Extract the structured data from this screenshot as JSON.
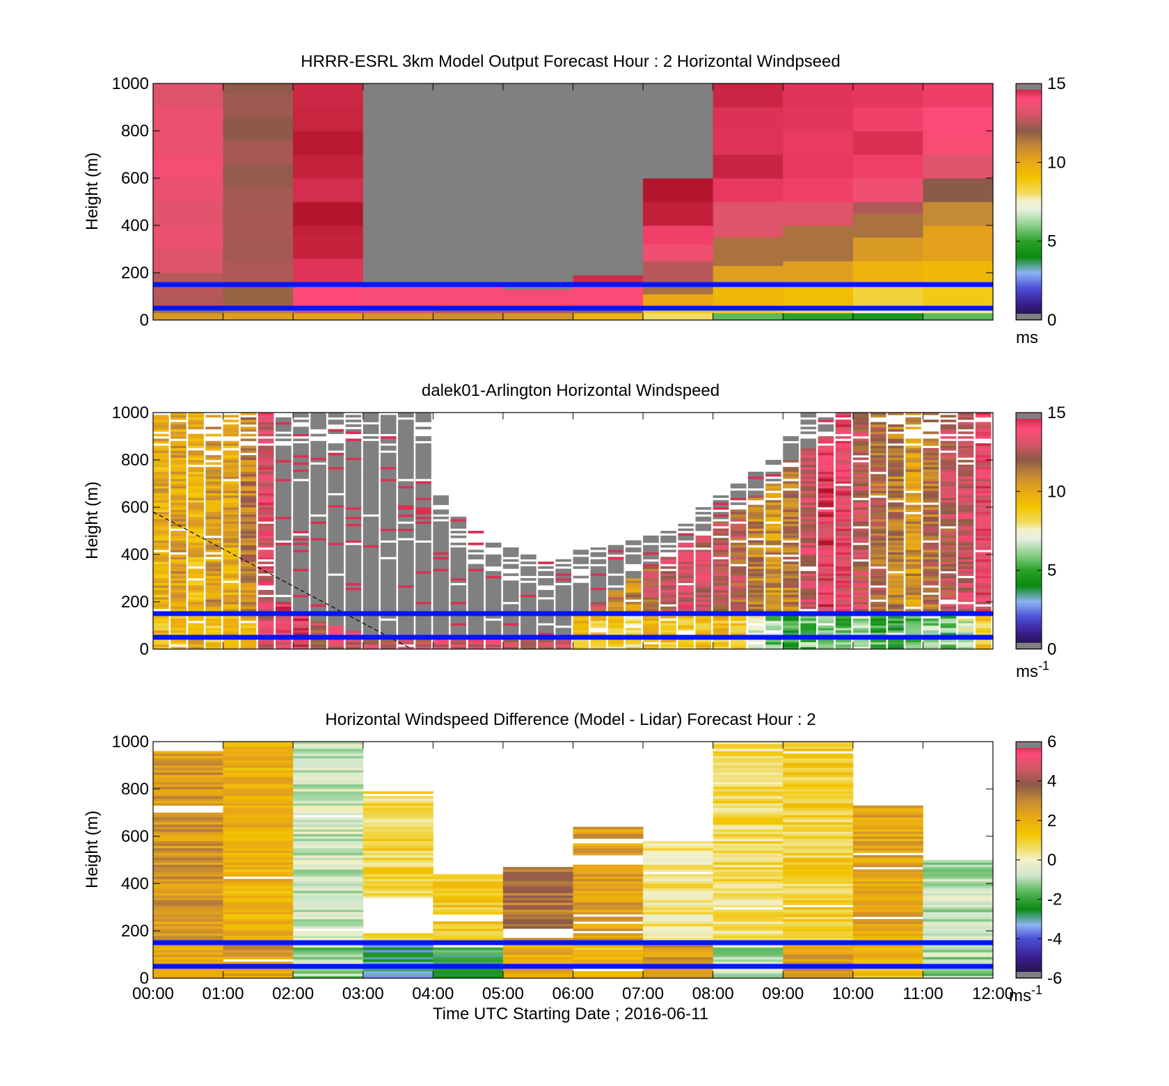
{
  "colors": {
    "grey": "#808080",
    "blue_line": "#0015ff",
    "windspeed_scale": [
      [
        0,
        "#1a1033"
      ],
      [
        1,
        "#3a1d8a"
      ],
      [
        2,
        "#4b4ed8"
      ],
      [
        3,
        "#8cb4f2"
      ],
      [
        4,
        "#0a8a10"
      ],
      [
        5,
        "#2aa22a"
      ],
      [
        6,
        "#8ccf8c"
      ],
      [
        7,
        "#e8f0e0"
      ],
      [
        7.6,
        "#f4f0c8"
      ],
      [
        8,
        "#f1dc63"
      ],
      [
        9,
        "#f2c400"
      ],
      [
        10,
        "#eaa716"
      ],
      [
        11,
        "#c58a34"
      ],
      [
        12,
        "#8c5a48"
      ],
      [
        13,
        "#d65668"
      ],
      [
        14,
        "#ff4a78"
      ],
      [
        15,
        "#b3162c"
      ]
    ],
    "difference_scale": [
      [
        -6,
        "#1a1033"
      ],
      [
        -5,
        "#3a1d8a"
      ],
      [
        -4,
        "#4b4ed8"
      ],
      [
        -3.3,
        "#8cb4f2"
      ],
      [
        -2.5,
        "#0a8a10"
      ],
      [
        -1.6,
        "#5bb85b"
      ],
      [
        -0.8,
        "#cfe6cf"
      ],
      [
        0,
        "#f4f0c8"
      ],
      [
        0.6,
        "#f1dc63"
      ],
      [
        1.3,
        "#f2c400"
      ],
      [
        2.2,
        "#eaa716"
      ],
      [
        3,
        "#c58a34"
      ],
      [
        3.8,
        "#8c5a48"
      ],
      [
        4.7,
        "#d65668"
      ],
      [
        5.4,
        "#ff4a78"
      ],
      [
        6,
        "#b3162c"
      ]
    ]
  },
  "x_ticks": [
    "00:00",
    "01:00",
    "02:00",
    "03:00",
    "04:00",
    "05:00",
    "06:00",
    "07:00",
    "08:00",
    "09:00",
    "10:00",
    "11:00",
    "12:00"
  ],
  "xlabel": "Time UTC  Starting Date ; 2016-06-11",
  "y_ticks": [
    "0",
    "200",
    "400",
    "600",
    "800",
    "1000"
  ],
  "ylabel": "Height (m)",
  "reference_heights_m": [
    150,
    50
  ],
  "chart_data": [
    {
      "type": "heatmap",
      "title": "HRRR-ESRL 3km Model Output   Forecast Hour : 2 Horizontal Windpseed",
      "xlabel": "",
      "ylabel": "Height (m)",
      "x_hours": [
        0,
        12
      ],
      "ylim": [
        0,
        1000
      ],
      "clim": [
        0,
        15
      ],
      "colorbar_ticks": [
        "0",
        "5",
        "10",
        "15"
      ],
      "colorbar_unit": "ms",
      "colorbar_unit_sup": "",
      "columns_description_hours": [
        0,
        1,
        2,
        3,
        4,
        5,
        6,
        7,
        8,
        9,
        10,
        11
      ],
      "columns": [
        {
          "levels": [
            [
              0,
              30,
              10.5
            ],
            [
              30,
              60,
              11.5
            ],
            [
              60,
              100,
              12.5
            ],
            [
              100,
              200,
              12.6
            ],
            [
              200,
              300,
              13.2
            ],
            [
              300,
              1000,
              13.4
            ]
          ]
        },
        {
          "levels": [
            [
              0,
              30,
              10.3
            ],
            [
              30,
              60,
              11.2
            ],
            [
              60,
              160,
              11.8
            ],
            [
              160,
              1000,
              12.2
            ]
          ]
        },
        {
          "levels": [
            [
              0,
              30,
              10.2
            ],
            [
              30,
              60,
              12.8
            ],
            [
              60,
              160,
              14.0
            ],
            [
              160,
              400,
              14.6
            ],
            [
              400,
              1000,
              14.8
            ]
          ]
        },
        {
          "levels": [
            [
              0,
              30,
              10.6
            ],
            [
              30,
              60,
              13.0
            ],
            [
              60,
              160,
              13.8
            ],
            [
              160,
              1000,
              -1
            ]
          ]
        },
        {
          "levels": [
            [
              0,
              30,
              10.8
            ],
            [
              30,
              60,
              12.6
            ],
            [
              60,
              150,
              13.8
            ],
            [
              150,
              1000,
              -1
            ]
          ]
        },
        {
          "levels": [
            [
              0,
              30,
              10.6
            ],
            [
              30,
              60,
              12.6
            ],
            [
              60,
              130,
              13.8
            ],
            [
              130,
              1000,
              -1
            ]
          ]
        },
        {
          "levels": [
            [
              0,
              30,
              9.6
            ],
            [
              30,
              60,
              11.8
            ],
            [
              60,
              150,
              13.9
            ],
            [
              150,
              190,
              14.6
            ],
            [
              190,
              1000,
              -1
            ]
          ]
        },
        {
          "levels": [
            [
              0,
              30,
              8.0
            ],
            [
              30,
              60,
              8.8
            ],
            [
              60,
              110,
              10.0
            ],
            [
              110,
              160,
              11.5
            ],
            [
              160,
              250,
              12.6
            ],
            [
              250,
              320,
              13.6
            ],
            [
              320,
              400,
              14.2
            ],
            [
              400,
              600,
              14.9
            ],
            [
              600,
              1000,
              -1
            ]
          ]
        },
        {
          "levels": [
            [
              0,
              30,
              5.5
            ],
            [
              30,
              60,
              8.8
            ],
            [
              60,
              150,
              9.4
            ],
            [
              150,
              230,
              10.3
            ],
            [
              230,
              350,
              11.5
            ],
            [
              350,
              500,
              13.2
            ],
            [
              500,
              600,
              14.3
            ],
            [
              600,
              1000,
              14.5
            ]
          ]
        },
        {
          "levels": [
            [
              0,
              30,
              5.0
            ],
            [
              30,
              60,
              8.2
            ],
            [
              60,
              150,
              9.2
            ],
            [
              150,
              250,
              10.3
            ],
            [
              250,
              400,
              11.5
            ],
            [
              400,
              500,
              13.2
            ],
            [
              500,
              600,
              14.2
            ],
            [
              600,
              1000,
              14.5
            ]
          ]
        },
        {
          "levels": [
            [
              0,
              30,
              4.5
            ],
            [
              30,
              60,
              7.2
            ],
            [
              60,
              150,
              8.4
            ],
            [
              150,
              250,
              9.6
            ],
            [
              250,
              350,
              10.5
            ],
            [
              350,
              450,
              11.5
            ],
            [
              450,
              500,
              12.5
            ],
            [
              500,
              600,
              13.6
            ],
            [
              600,
              1000,
              14.2
            ]
          ]
        },
        {
          "levels": [
            [
              0,
              30,
              5.5
            ],
            [
              30,
              60,
              7.8
            ],
            [
              60,
              150,
              8.8
            ],
            [
              150,
              250,
              9.4
            ],
            [
              250,
              400,
              10.2
            ],
            [
              400,
              500,
              11.0
            ],
            [
              500,
              600,
              12.0
            ],
            [
              600,
              700,
              13.2
            ],
            [
              700,
              1000,
              14.0
            ]
          ]
        }
      ]
    },
    {
      "type": "heatmap",
      "title": "dalek01-Arlington  Horizontal Windspeed",
      "xlabel": "",
      "ylabel": "Height (m)",
      "x_hours": [
        0,
        12
      ],
      "ylim": [
        0,
        1000
      ],
      "clim": [
        0,
        15
      ],
      "colorbar_ticks": [
        "0",
        "5",
        "10",
        "15"
      ],
      "colorbar_unit": "ms",
      "colorbar_unit_sup": "-1",
      "dashed_line": {
        "from": [
          0,
          580
        ],
        "to": [
          3.7,
          0
        ]
      },
      "column_bins": 48,
      "column_tops_m": [
        1000,
        1000,
        1000,
        1000,
        1000,
        1000,
        1000,
        1000,
        1000,
        1000,
        1000,
        1000,
        1000,
        1000,
        1000,
        1000,
        650,
        560,
        500,
        450,
        430,
        400,
        380,
        380,
        420,
        440,
        440,
        460,
        480,
        500,
        560,
        600,
        650,
        700,
        750,
        800,
        900,
        1000,
        1000,
        1000,
        1000,
        1000,
        1000,
        1000,
        1000,
        1000,
        1000,
        1000
      ],
      "column_grey_above_m": [
        9999,
        9999,
        9999,
        9999,
        9999,
        9999,
        9999,
        200,
        150,
        120,
        100,
        80,
        60,
        60,
        60,
        60,
        60,
        60,
        60,
        60,
        60,
        60,
        60,
        60,
        150,
        200,
        250,
        300,
        350,
        400,
        450,
        500,
        550,
        600,
        650,
        700,
        800,
        850,
        900,
        9999,
        9999,
        9999,
        9999,
        9999,
        9999,
        9999,
        9999,
        9999
      ],
      "column_base_speed": [
        9.8,
        10.2,
        9.6,
        10.4,
        10.0,
        11.2,
        13.4,
        14.0,
        14.2,
        13.8,
        14.4,
        13.6,
        13.2,
        13.0,
        12.8,
        13.2,
        13.4,
        13.8,
        14.0,
        13.6,
        13.2,
        13.6,
        13.4,
        13.8,
        13.2,
        12.4,
        11.5,
        10.8,
        12.2,
        12.8,
        13.4,
        13.0,
        12.6,
        12.0,
        11.2,
        10.6,
        11.4,
        12.8,
        14.0,
        13.6,
        12.6,
        11.8,
        11.2,
        10.6,
        11.6,
        12.4,
        13.0,
        13.6
      ],
      "column_low_speed": [
        9.4,
        9.2,
        9.8,
        9.0,
        9.4,
        9.6,
        13.2,
        13.6,
        13.8,
        12.4,
        13.2,
        13.0,
        12.6,
        12.6,
        12.2,
        12.6,
        12.8,
        13.0,
        13.2,
        12.8,
        12.4,
        12.8,
        12.6,
        13.0,
        9.2,
        9.0,
        8.6,
        7.8,
        9.4,
        9.0,
        8.8,
        9.0,
        9.2,
        8.6,
        7.2,
        6.0,
        5.0,
        5.8,
        6.2,
        5.6,
        6.4,
        5.2,
        4.6,
        5.4,
        6.2,
        5.8,
        7.0,
        8.8
      ]
    },
    {
      "type": "heatmap",
      "title": "Horizontal Windspeed Difference (Model - Lidar) Forecast Hour : 2",
      "xlabel": "Time UTC  Starting Date ; 2016-06-11",
      "ylabel": "Height (m)",
      "x_hours": [
        0,
        12
      ],
      "ylim": [
        0,
        1000
      ],
      "clim": [
        -6,
        6
      ],
      "colorbar_ticks": [
        "-6",
        "-4",
        "-2",
        "0",
        "2",
        "4",
        "6"
      ],
      "colorbar_unit": "ms",
      "colorbar_unit_sup": "-1",
      "columns": [
        {
          "top": 960,
          "base": 2.6,
          "low": 2.2,
          "gaps": [
            [
              700,
              730
            ]
          ]
        },
        {
          "top": 1000,
          "base": 1.8,
          "low": 2.4,
          "gaps": []
        },
        {
          "top": 1000,
          "base": -0.6,
          "low": -1.2,
          "gaps": []
        },
        {
          "top": 790,
          "base": 0.8,
          "low": -2.8,
          "gaps": [
            [
              190,
              340
            ],
            [
              800,
              940
            ]
          ]
        },
        {
          "top": 440,
          "base": 1.2,
          "low": -2.2,
          "gaps": [
            [
              240,
              270
            ],
            [
              130,
              150
            ]
          ]
        },
        {
          "top": 470,
          "base": 3.4,
          "low": 2.0,
          "gaps": [
            [
              170,
              210
            ]
          ]
        },
        {
          "top": 640,
          "base": 2.4,
          "low": 1.4,
          "gaps": [
            [
              480,
              520
            ],
            [
              570,
              590
            ],
            [
              780,
              1000
            ]
          ]
        },
        {
          "top": 580,
          "base": 0.4,
          "low": 2.6,
          "gaps": [
            [
              600,
              630
            ],
            [
              650,
              720
            ]
          ]
        },
        {
          "top": 1000,
          "base": 0.6,
          "low": -0.8,
          "gaps": []
        },
        {
          "top": 1000,
          "base": 1.0,
          "low": 2.4,
          "gaps": []
        },
        {
          "top": 730,
          "base": 2.2,
          "low": 1.6,
          "gaps": []
        },
        {
          "top": 500,
          "base": -0.8,
          "low": -1.0,
          "gaps": []
        }
      ]
    }
  ]
}
